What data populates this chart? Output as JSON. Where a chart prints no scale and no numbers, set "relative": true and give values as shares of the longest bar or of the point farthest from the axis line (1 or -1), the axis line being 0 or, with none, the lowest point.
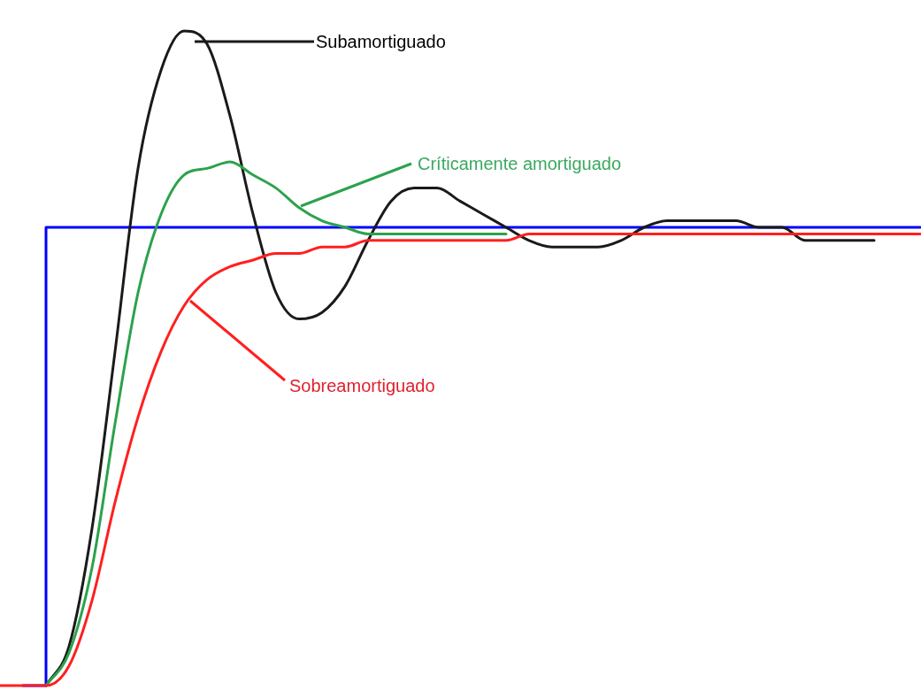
{
  "chart_data": {
    "type": "line",
    "relative": true,
    "categories": [
      null,
      null,
      null,
      null,
      null,
      null,
      null,
      null,
      null,
      null,
      null,
      null,
      null,
      null,
      null,
      null,
      null,
      null,
      null,
      null,
      null,
      null,
      null,
      null,
      null,
      null,
      null,
      null,
      null,
      null,
      null,
      null,
      null,
      null,
      null,
      null,
      null,
      null,
      null,
      null,
      null
    ],
    "series": [
      {
        "type": "step",
        "color": "#0000ff",
        "values": [
          null,
          0,
          0.7,
          0.7,
          0.7,
          0.7,
          0.7,
          0.7,
          0.7,
          0.7,
          0.7,
          0.7,
          0.7,
          0.7,
          0.7,
          0.7,
          0.7,
          0.7,
          0.7,
          0.7,
          0.7,
          0.7,
          0.7,
          0.7,
          0.7,
          0.7,
          0.7,
          0.7,
          0.7,
          0.7,
          0.7,
          0.7,
          0.7,
          0.7,
          0.7,
          0.7,
          0.7,
          0.7,
          0.7,
          0.7,
          0.7
        ]
      },
      {
        "name": "Subamortiguado",
        "color": "#1a1a1a",
        "values": [
          null,
          null,
          0,
          0.06,
          0.24,
          0.51,
          0.79,
          0.94,
          1,
          0.98,
          0.87,
          0.72,
          0.6,
          0.56,
          0.57,
          0.61,
          0.68,
          0.74,
          0.76,
          0.76,
          0.74,
          0.72,
          0.7,
          0.68,
          0.67,
          0.67,
          0.67,
          0.68,
          0.7,
          0.71,
          0.71,
          0.71,
          0.71,
          0.7,
          0.7,
          0.68,
          0.68,
          0.68,
          0.68,
          null,
          null
        ]
      },
      {
        "name": "Críticamente amortiguado",
        "color": "#2ca24c",
        "values": [
          null,
          null,
          0,
          0.05,
          0.18,
          0.4,
          0.6,
          0.72,
          0.78,
          0.79,
          0.8,
          0.78,
          0.76,
          0.73,
          0.71,
          0.7,
          0.69,
          0.69,
          0.69,
          0.69,
          0.69,
          0.69,
          0.69,
          null,
          null,
          null,
          null,
          null,
          null,
          null,
          null,
          null,
          null,
          null,
          null,
          null,
          null,
          null,
          null,
          null,
          null
        ]
      },
      {
        "name": "Sobreamortiguado",
        "color": "#ff1f1f",
        "values": [
          0,
          0,
          0,
          0.03,
          0.13,
          0.28,
          0.41,
          0.51,
          0.58,
          0.62,
          0.64,
          0.65,
          0.66,
          0.66,
          0.67,
          0.67,
          0.68,
          0.68,
          0.68,
          0.68,
          0.68,
          0.68,
          0.68,
          0.69,
          0.69,
          0.69,
          0.69,
          0.69,
          0.69,
          0.69,
          0.69,
          0.69,
          0.69,
          0.69,
          0.69,
          0.69,
          0.69,
          0.69,
          0.69,
          0.69,
          0.69
        ]
      }
    ]
  }
}
